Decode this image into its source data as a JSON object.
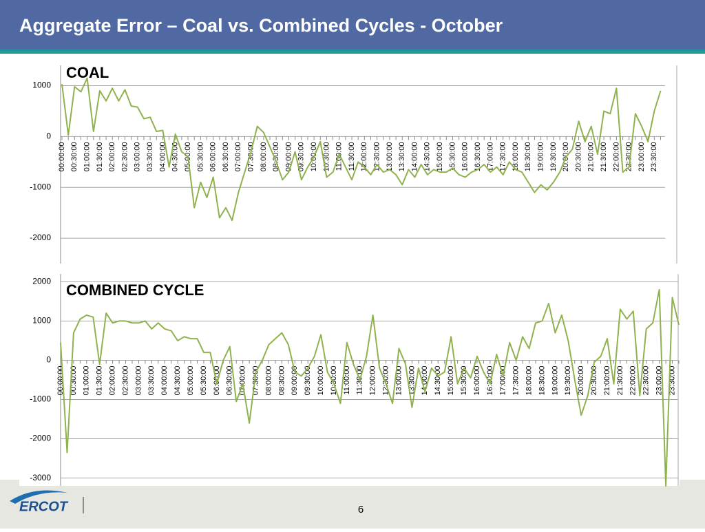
{
  "header": {
    "title": "Aggregate Error – Coal vs. Combined Cycles - October"
  },
  "footer": {
    "logo": "ERCOT",
    "page_number": "6"
  },
  "chart_data": [
    {
      "type": "line",
      "title": "COAL",
      "color": "#8fb24f",
      "grid": true,
      "ylim": [
        -2500,
        1400
      ],
      "yticks": [
        -2000,
        -1000,
        0,
        1000
      ],
      "categories": [
        "00:00:00",
        null,
        "00:30:00",
        null,
        "01:00:00",
        null,
        "01:30:00",
        null,
        "02:00:00",
        null,
        "02:30:00",
        null,
        "03:00:00",
        null,
        "03:30:00",
        null,
        "04:00:00",
        null,
        "04:30:00",
        null,
        "05:00:00",
        null,
        "05:30:00",
        null,
        "06:00:00",
        null,
        "06:30:00",
        null,
        "07:00:00",
        null,
        "07:30:00",
        null,
        "08:00:00",
        null,
        "08:30:00",
        null,
        "09:00:00",
        null,
        "09:30:00",
        null,
        "10:00:00",
        null,
        "10:30:00",
        null,
        "11:00:00",
        null,
        "11:30:00",
        null,
        "12:00:00",
        null,
        "12:30:00",
        null,
        "13:00:00",
        null,
        "13:30:00",
        null,
        "14:00:00",
        null,
        "14:30:00",
        null,
        "15:00:00",
        null,
        "15:30:00",
        null,
        "16:00:00",
        null,
        "16:30:00",
        null,
        "17:00:00",
        null,
        "17:30:00",
        null,
        "18:00:00",
        null,
        "18:30:00",
        null,
        "19:00:00",
        null,
        "19:30:00",
        null,
        "20:00:00",
        null,
        "20:30:00",
        null,
        "21:00:00",
        null,
        "21:30:00",
        null,
        "22:00:00",
        null,
        "22:30:00",
        null,
        "23:00:00",
        null,
        "23:30:00",
        null
      ],
      "values": [
        1030,
        30,
        980,
        880,
        1150,
        100,
        900,
        700,
        950,
        700,
        920,
        600,
        580,
        350,
        380,
        100,
        120,
        -600,
        50,
        -300,
        -400,
        -1400,
        -900,
        -1200,
        -800,
        -1600,
        -1400,
        -1650,
        -1100,
        -700,
        -300,
        200,
        80,
        -200,
        -500,
        -850,
        -700,
        -300,
        -850,
        -600,
        -400,
        -100,
        -800,
        -700,
        -350,
        -600,
        -850,
        -500,
        -600,
        -750,
        -550,
        -700,
        -650,
        -750,
        -950,
        -650,
        -800,
        -550,
        -750,
        -650,
        -700,
        -700,
        -620,
        -750,
        -800,
        -700,
        -650,
        -550,
        -700,
        -600,
        -750,
        -500,
        -650,
        -700,
        -900,
        -1100,
        -950,
        -1050,
        -900,
        -700,
        -400,
        -250,
        300,
        -100,
        200,
        -350,
        500,
        450,
        950,
        -700,
        -600,
        450,
        200,
        -100,
        500,
        900
      ]
    },
    {
      "type": "line",
      "title": "COMBINED CYCLE",
      "color": "#8fb24f",
      "grid": true,
      "ylim": [
        -3200,
        2200
      ],
      "yticks": [
        -3000,
        -2000,
        -1000,
        0,
        1000,
        2000
      ],
      "categories": [
        "00:00:00",
        null,
        "00:30:00",
        null,
        "01:00:00",
        null,
        "01:30:00",
        null,
        "02:00:00",
        null,
        "02:30:00",
        null,
        "03:00:00",
        null,
        "03:30:00",
        null,
        "04:00:00",
        null,
        "04:30:00",
        null,
        "05:00:00",
        null,
        "05:30:00",
        null,
        "06:00:00",
        null,
        "06:30:00",
        null,
        "07:00:00",
        null,
        "07:30:00",
        null,
        "08:00:00",
        null,
        "08:30:00",
        null,
        "09:00:00",
        null,
        "09:30:00",
        null,
        "10:00:00",
        null,
        "10:30:00",
        null,
        "11:00:00",
        null,
        "11:30:00",
        null,
        "12:00:00",
        null,
        "12:30:00",
        null,
        "13:00:00",
        null,
        "13:30:00",
        null,
        "14:00:00",
        null,
        "14:30:00",
        null,
        "15:00:00",
        null,
        "15:30:00",
        null,
        "16:00:00",
        null,
        "16:30:00",
        null,
        "17:00:00",
        null,
        "17:30:00",
        null,
        "18:00:00",
        null,
        "18:30:00",
        null,
        "19:00:00",
        null,
        "19:30:00",
        null,
        "20:00:00",
        null,
        "20:30:00",
        null,
        "21:00:00",
        null,
        "21:30:00",
        null,
        "22:00:00",
        null,
        "22:30:00",
        null,
        "23:00:00",
        null,
        "23:30:00",
        null
      ],
      "values": [
        450,
        -2350,
        700,
        1050,
        1150,
        1100,
        -100,
        1200,
        950,
        1000,
        1000,
        950,
        950,
        1000,
        800,
        950,
        800,
        750,
        500,
        600,
        550,
        550,
        200,
        200,
        -600,
        0,
        350,
        -1050,
        -600,
        -1600,
        -300,
        0,
        400,
        550,
        700,
        400,
        -300,
        -400,
        -200,
        100,
        650,
        -300,
        -600,
        -1100,
        450,
        -100,
        -500,
        100,
        1150,
        -200,
        -600,
        -1100,
        300,
        -100,
        -1200,
        -200,
        -800,
        -200,
        -400,
        -300,
        600,
        -600,
        -200,
        -450,
        100,
        -300,
        -600,
        150,
        -400,
        450,
        0,
        600,
        300,
        950,
        1000,
        1450,
        700,
        1150,
        500,
        -500,
        -1400,
        -900,
        -50,
        100,
        550,
        -600,
        1300,
        1050,
        1250,
        -900,
        800,
        950,
        1800,
        -3200,
        1600,
        900
      ]
    }
  ]
}
